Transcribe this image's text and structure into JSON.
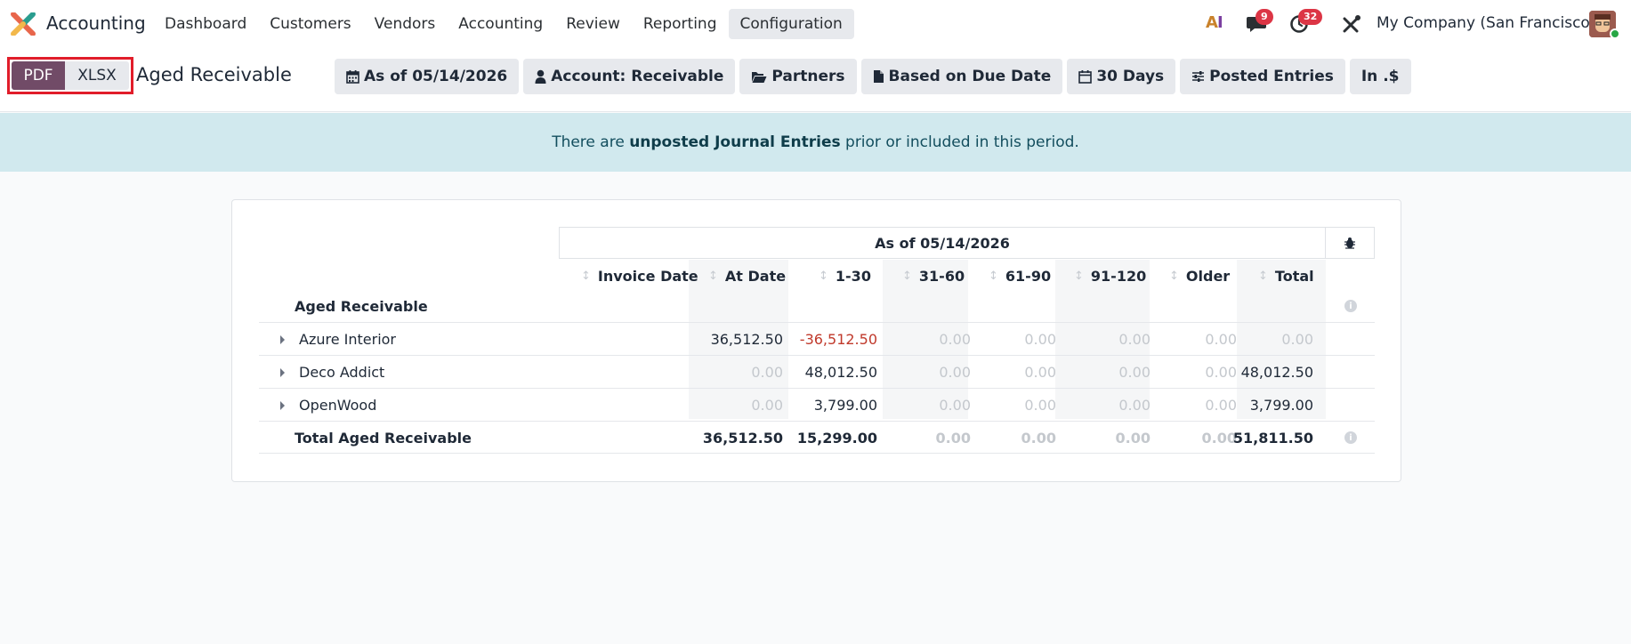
{
  "navbar": {
    "app_name": "Accounting",
    "menu": [
      "Dashboard",
      "Customers",
      "Vendors",
      "Accounting",
      "Review",
      "Reporting",
      "Configuration"
    ],
    "active_menu": "Configuration",
    "ai_label_a": "A",
    "ai_label_i": "I",
    "messages_count": "9",
    "activities_count": "32",
    "company": "My Company (San Francisco)"
  },
  "control_panel": {
    "pdf_label": "PDF",
    "xlsx_label": "XLSX",
    "report_title": "Aged Receivable",
    "filters": [
      {
        "icon": "calendar-icon",
        "label": "As of 05/14/2026"
      },
      {
        "icon": "user-icon",
        "label": "Account: Receivable"
      },
      {
        "icon": "folder-open-icon",
        "label": "Partners"
      },
      {
        "icon": "file-icon",
        "label": "Based on Due Date"
      },
      {
        "icon": "calendar-outline-icon",
        "label": "30 Days"
      },
      {
        "icon": "sliders-icon",
        "label": "Posted Entries"
      },
      {
        "icon": "",
        "label": "In .$"
      }
    ]
  },
  "alert": {
    "prefix": "There are ",
    "link": "unposted Journal Entries",
    "suffix": " prior or included in this period."
  },
  "report": {
    "period_header": "As of 05/14/2026",
    "columns": [
      "Invoice Date",
      "At Date",
      "1-30",
      "31-60",
      "61-90",
      "91-120",
      "Older",
      "Total"
    ],
    "section_title": "Aged Receivable",
    "rows": [
      {
        "name": "Azure Interior",
        "values": [
          "",
          "36,512.50",
          "-36,512.50",
          "0.00",
          "0.00",
          "0.00",
          "0.00",
          "0.00"
        ]
      },
      {
        "name": "Deco Addict",
        "values": [
          "",
          "0.00",
          "48,012.50",
          "0.00",
          "0.00",
          "0.00",
          "0.00",
          "48,012.50"
        ]
      },
      {
        "name": "OpenWood",
        "values": [
          "",
          "0.00",
          "3,799.00",
          "0.00",
          "0.00",
          "0.00",
          "0.00",
          "3,799.00"
        ]
      }
    ],
    "total": {
      "name": "Total Aged Receivable",
      "values": [
        "",
        "36,512.50",
        "15,299.00",
        "0.00",
        "0.00",
        "0.00",
        "0.00",
        "51,811.50"
      ]
    }
  },
  "colors": {
    "brand": "#714b67",
    "alert_bg": "#d1e9ee",
    "negative": "#c0392b",
    "highlight_border": "#e11d2a"
  }
}
